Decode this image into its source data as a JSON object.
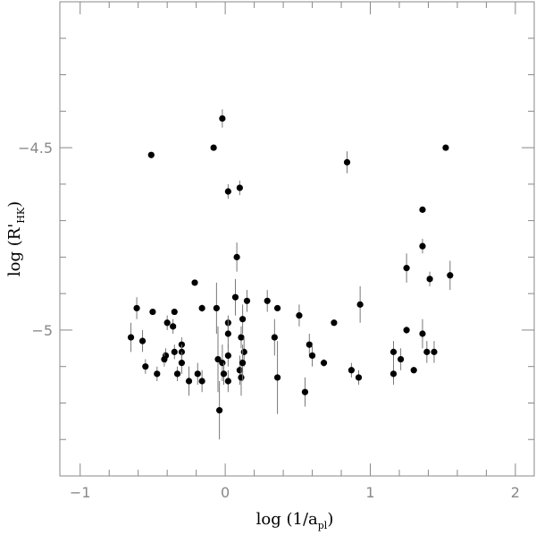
{
  "chart_data": {
    "type": "scatter",
    "xlabel": "log (1/a",
    "xlabel_sub": "pl",
    "xlabel_end": ")",
    "ylabel": "log (R'",
    "ylabel_sub": "HK",
    "ylabel_end": ")",
    "xlim": [
      -1.14,
      2.13
    ],
    "ylim": [
      -5.4,
      -4.1
    ],
    "xticks": [
      {
        "value": -1,
        "label": "−1"
      },
      0,
      1,
      2
    ],
    "yticks": [
      {
        "value": -4.5,
        "label": "−4.5"
      },
      {
        "value": -5,
        "label": "−5"
      }
    ],
    "xminorticks": [
      -0.8,
      -0.6,
      -0.4,
      -0.2,
      0.2,
      0.4,
      0.6,
      0.8,
      1.2,
      1.4,
      1.6,
      1.8
    ],
    "yminorticks": [
      -5.3,
      -5.2,
      -5.1,
      -4.9,
      -4.8,
      -4.7,
      -4.6,
      -4.4,
      -4.3,
      -4.2
    ],
    "color": "#000000",
    "x": [
      -0.51,
      -0.02,
      -0.08,
      0.02,
      0.1,
      0.84,
      1.52,
      1.36,
      1.36,
      1.25,
      1.41,
      1.55,
      0.08,
      -0.21,
      -0.61,
      -0.5,
      -0.35,
      -0.16,
      -0.06,
      0.07,
      0.15,
      0.29,
      0.36,
      0.51,
      0.75,
      0.93,
      -0.4,
      -0.36,
      -0.65,
      -0.57,
      0.02,
      0.12,
      0.02,
      0.11,
      0.34,
      0.58,
      0.6,
      0.68,
      -0.3,
      -0.3,
      -0.41,
      -0.42,
      -0.35,
      -0.55,
      -0.47,
      -0.33,
      -0.3,
      -0.25,
      -0.19,
      -0.16,
      -0.05,
      -0.02,
      0.02,
      -0.01,
      0.02,
      0.1,
      0.11,
      0.13,
      0.12,
      -0.04,
      0.36,
      0.55,
      0.87,
      0.92,
      1.16,
      1.16,
      1.21,
      1.25,
      1.3,
      1.36,
      1.39,
      1.44
    ],
    "y": [
      -4.52,
      -4.42,
      -4.5,
      -4.62,
      -4.61,
      -4.54,
      -4.5,
      -4.67,
      -4.77,
      -4.83,
      -4.86,
      -4.85,
      -4.8,
      -4.87,
      -4.94,
      -4.95,
      -4.95,
      -4.94,
      -4.94,
      -4.91,
      -4.92,
      -4.92,
      -4.94,
      -4.96,
      -4.98,
      -4.93,
      -4.98,
      -4.99,
      -5.02,
      -5.03,
      -4.98,
      -4.97,
      -5.01,
      -5.02,
      -5.02,
      -5.04,
      -5.07,
      -5.09,
      -5.04,
      -5.06,
      -5.07,
      -5.08,
      -5.06,
      -5.1,
      -5.12,
      -5.12,
      -5.09,
      -5.14,
      -5.12,
      -5.14,
      -5.08,
      -5.09,
      -5.07,
      -5.12,
      -5.14,
      -5.11,
      -5.13,
      -5.06,
      -5.09,
      -5.22,
      -5.13,
      -5.17,
      -5.11,
      -5.13,
      -5.06,
      -5.12,
      -5.08,
      -5.0,
      -5.11,
      -5.01,
      -5.06,
      -5.06
    ],
    "yerr": [
      0.005,
      0.025,
      0.005,
      0.02,
      0.02,
      0.03,
      0.005,
      0.005,
      0.02,
      0.04,
      0.02,
      0.04,
      0.04,
      0.005,
      0.03,
      0.005,
      0.005,
      0.01,
      0.07,
      0.05,
      0.03,
      0.03,
      0.005,
      0.03,
      0.005,
      0.05,
      0.02,
      0.02,
      0.04,
      0.03,
      0.02,
      0.04,
      0.04,
      0.03,
      0.05,
      0.03,
      0.03,
      0.01,
      0.02,
      0.02,
      0.02,
      0.02,
      0.02,
      0.02,
      0.02,
      0.02,
      0.03,
      0.04,
      0.03,
      0.03,
      0.09,
      0.05,
      0.03,
      0.03,
      0.03,
      0.04,
      0.05,
      0.04,
      0.05,
      0.08,
      0.1,
      0.04,
      0.02,
      0.02,
      0.03,
      0.03,
      0.03,
      0.01,
      0.005,
      0.04,
      0.03,
      0.03
    ]
  }
}
